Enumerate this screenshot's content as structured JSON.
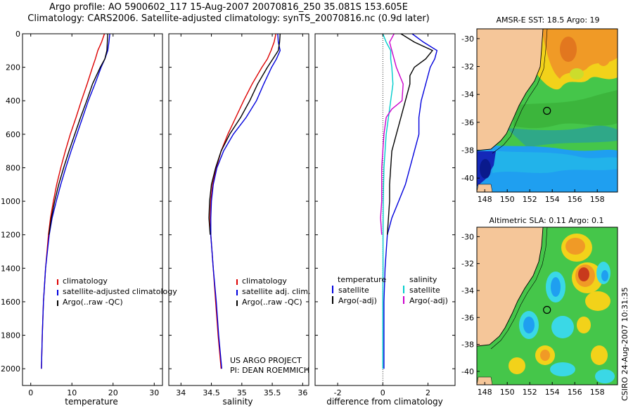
{
  "header": {
    "line1": "Argo profile: AO 5900602_117 15-Aug-2007 20070816_250 35.081S 153.605E",
    "line2": "Climatology: CARS2006. Satellite-adjusted climatology: synTS_20070816.nc (0.9d later)"
  },
  "credits": {
    "project": "US ARGO PROJECT",
    "pi": "PI: DEAN ROEMMICH",
    "stamp": "CSIRO 24-Aug-2007 10:31:35"
  },
  "chart_data": [
    {
      "type": "line",
      "id": "temperature",
      "xlabel": "temperature",
      "ylabel": "",
      "xlim": [
        -2,
        32
      ],
      "ylim": [
        2100,
        0
      ],
      "xticks": [
        0,
        10,
        20,
        30
      ],
      "yticks": [
        0,
        200,
        400,
        600,
        800,
        1000,
        1200,
        1400,
        1600,
        1800,
        2000
      ],
      "legend": [
        "climatology",
        "satellite-adjusted climatology",
        "Argo(..raw -QC)"
      ],
      "series": [
        {
          "name": "climatology",
          "color": "#dd0000",
          "depth": [
            0,
            50,
            100,
            150,
            200,
            300,
            400,
            500,
            600,
            700,
            800,
            900,
            1000,
            1100,
            1200,
            1400,
            1600,
            1800,
            2000
          ],
          "values": [
            17.9,
            17.2,
            16.3,
            15.7,
            15.0,
            13.7,
            12.3,
            11.0,
            9.6,
            8.4,
            7.3,
            6.3,
            5.5,
            4.8,
            4.3,
            3.6,
            3.1,
            2.8,
            2.6
          ]
        },
        {
          "name": "satellite-adjusted climatology",
          "color": "#0000dd",
          "depth": [
            0,
            50,
            100,
            150,
            200,
            300,
            400,
            500,
            600,
            700,
            800,
            900,
            1000,
            1100,
            1200,
            1400,
            1600,
            1800,
            2000
          ],
          "values": [
            19.2,
            19.0,
            18.7,
            18.0,
            17.1,
            15.6,
            14.0,
            12.6,
            11.2,
            9.8,
            8.5,
            7.3,
            6.2,
            5.2,
            4.5,
            3.6,
            3.1,
            2.8,
            2.6
          ]
        },
        {
          "name": "Argo(..raw -QC)",
          "color": "#000000",
          "depth": [
            0,
            50,
            100,
            150,
            200,
            300,
            400,
            500,
            600,
            700,
            800,
            900,
            1000,
            1100,
            1200
          ],
          "values": [
            18.7,
            18.6,
            18.5,
            18.0,
            16.9,
            15.0,
            13.6,
            12.1,
            10.7,
            9.3,
            8.0,
            6.8,
            5.8,
            5.0,
            4.4
          ]
        }
      ]
    },
    {
      "type": "line",
      "id": "salinity",
      "xlabel": "salinity",
      "ylabel": "",
      "xlim": [
        33.8,
        36.1
      ],
      "ylim": [
        2100,
        0
      ],
      "xticks": [
        34,
        34.5,
        35,
        35.5,
        36
      ],
      "legend": [
        "climatology",
        "satellite adj. clim.",
        "Argo(..raw -QC)"
      ],
      "series": [
        {
          "name": "climatology",
          "color": "#dd0000",
          "depth": [
            0,
            50,
            100,
            150,
            200,
            300,
            400,
            500,
            600,
            700,
            800,
            900,
            1000,
            1100,
            1200,
            1400,
            1600,
            1800,
            2000
          ],
          "values": [
            35.56,
            35.53,
            35.48,
            35.42,
            35.33,
            35.17,
            35.03,
            34.9,
            34.77,
            34.66,
            34.58,
            34.52,
            34.49,
            34.48,
            34.49,
            34.53,
            34.57,
            34.61,
            34.66
          ]
        },
        {
          "name": "satellite adj. clim.",
          "color": "#0000dd",
          "depth": [
            0,
            50,
            100,
            150,
            200,
            300,
            400,
            500,
            600,
            700,
            800,
            900,
            1000,
            1100,
            1200,
            1400,
            1600,
            1800,
            2000
          ],
          "values": [
            35.59,
            35.6,
            35.63,
            35.57,
            35.49,
            35.36,
            35.24,
            35.07,
            34.86,
            34.7,
            34.59,
            34.53,
            34.5,
            34.49,
            34.49,
            34.53,
            34.58,
            34.62,
            34.67
          ]
        },
        {
          "name": "Argo(..raw -QC)",
          "color": "#000000",
          "depth": [
            0,
            50,
            100,
            150,
            200,
            300,
            400,
            500,
            600,
            700,
            800,
            900,
            1000,
            1100,
            1200
          ],
          "values": [
            35.63,
            35.62,
            35.6,
            35.51,
            35.42,
            35.26,
            35.13,
            34.98,
            34.8,
            34.66,
            34.57,
            34.5,
            34.47,
            34.46,
            34.48
          ]
        }
      ]
    },
    {
      "type": "line",
      "id": "difference",
      "xlabel": "difference from climatology",
      "ylabel": "",
      "xlim": [
        -3.0,
        3.2
      ],
      "ylim": [
        2100,
        0
      ],
      "xticks": [
        -2,
        0,
        2
      ],
      "legend_temperature": {
        "heading": "temperature",
        "entries": [
          "satellite",
          "Argo(-adj)"
        ]
      },
      "legend_salinity": {
        "heading": "salinity",
        "entries": [
          "satellite",
          "Argo(-adj)"
        ]
      },
      "series": [
        {
          "name": "temperature satellite",
          "color": "#0000dd",
          "depth": [
            0,
            50,
            100,
            150,
            200,
            300,
            400,
            500,
            600,
            700,
            800,
            900,
            1000,
            1100,
            1200,
            1400,
            1600,
            1800,
            2000
          ],
          "values": [
            1.3,
            1.8,
            2.4,
            2.3,
            2.1,
            1.9,
            1.7,
            1.6,
            1.6,
            1.4,
            1.2,
            1.0,
            0.7,
            0.4,
            0.2,
            0.1,
            0.05,
            0.05,
            0.05
          ]
        },
        {
          "name": "temperature Argo(-adj)",
          "color": "#000000",
          "depth": [
            0,
            50,
            100,
            150,
            200,
            250,
            300,
            400,
            450,
            500,
            600,
            700,
            800,
            900,
            1000,
            1100,
            1200
          ],
          "values": [
            0.8,
            1.4,
            2.2,
            1.9,
            1.4,
            1.2,
            1.2,
            1.0,
            0.9,
            0.8,
            0.6,
            0.4,
            0.35,
            0.3,
            0.3,
            0.25,
            0.2
          ]
        },
        {
          "name": "salinity satellite",
          "color": "#00cccc",
          "depth": [
            0,
            50,
            100,
            150,
            200,
            300,
            400,
            500,
            600,
            800,
            1000,
            1200,
            1400,
            1600,
            1800,
            2000
          ],
          "values": [
            0.0,
            0.15,
            0.35,
            0.35,
            0.4,
            0.45,
            0.35,
            0.25,
            0.15,
            0.05,
            0.02,
            0.01,
            0.01,
            0.0,
            0.0,
            0.0
          ]
        },
        {
          "name": "salinity Argo(-adj)",
          "color": "#cc00cc",
          "depth": [
            0,
            50,
            100,
            150,
            200,
            300,
            400,
            450,
            500,
            600,
            700,
            800,
            900,
            1000,
            1100,
            1200
          ],
          "values": [
            0.5,
            0.3,
            0.4,
            0.5,
            0.6,
            0.9,
            0.85,
            0.4,
            0.15,
            0.05,
            0.0,
            -0.05,
            -0.05,
            -0.05,
            -0.1,
            -0.05
          ]
        }
      ]
    },
    {
      "type": "heatmap",
      "id": "sst-map",
      "title": "AMSR-E SST: 18.5 Argo: 19",
      "xlim": [
        147.3,
        159.8
      ],
      "ylim": [
        -41,
        -29.3
      ],
      "xticks": [
        148,
        150,
        152,
        154,
        156,
        158
      ],
      "yticks": [
        -30,
        -32,
        -34,
        -36,
        -38,
        -40
      ],
      "marker": {
        "lon": 153.6,
        "lat": -35.1
      }
    },
    {
      "type": "heatmap",
      "id": "sla-map",
      "title": "Altimetric SLA: 0.11 Argo: 0.1",
      "xlim": [
        147.3,
        159.8
      ],
      "ylim": [
        -41,
        -29.3
      ],
      "xticks": [
        148,
        150,
        152,
        154,
        156,
        158
      ],
      "yticks": [
        -30,
        -32,
        -34,
        -36,
        -38,
        -40
      ],
      "marker": {
        "lon": 153.6,
        "lat": -35.1
      }
    }
  ],
  "colors": {
    "land": "#f5c699",
    "ocean_blue": "#1f9ff0",
    "ocean_cyan": "#3ad8e6",
    "ocean_green": "#45c64a",
    "ocean_yellow": "#f2d21a",
    "ocean_orange": "#f09a26",
    "ocean_red": "#c8391c",
    "deep_blue": "#1428b8"
  }
}
